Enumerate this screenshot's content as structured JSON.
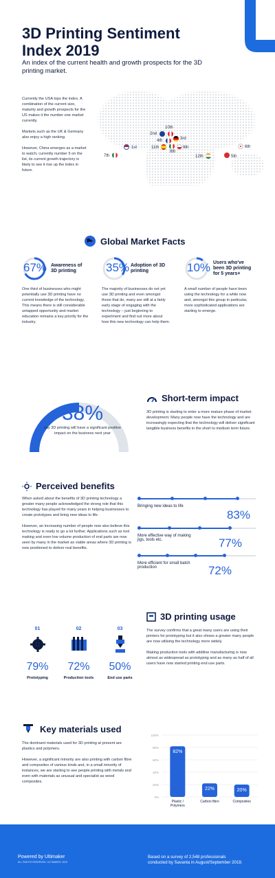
{
  "header": {
    "title_line1": "3D Printing Sentiment",
    "title_line2": "Index 2019",
    "subtitle": "An index of the current health and growth prospects for the 3D printing market."
  },
  "intro": {
    "p1": "Currently the USA tops the index. A combination of the current size, maturity and growth prospects for the US makes it the number one market currently.",
    "p2": "Markets such as the UK & Germany also enjoy a high ranking.",
    "p3": "However, China emerges as a market to watch; currently number 5 on the list, its current growth trajectory is likely to see it rise up the index in future."
  },
  "map": {
    "ranks": [
      "1st",
      "2nd",
      "3rd",
      "4th",
      "5th",
      "6th",
      "7th",
      "8th",
      "9th",
      "10th",
      "11th",
      "12th"
    ]
  },
  "global": {
    "heading": "Global Market Facts",
    "facts": [
      {
        "pct": "67%",
        "title": "Awareness of 3D printing",
        "body": "One third of businesses who might potentially use 3D printing have no current knowledge of the technology. This means there is still considerable untapped opportunity and market education remains a key priority for the industry."
      },
      {
        "pct": "35%",
        "title": "Adoption of 3D printing",
        "body": "The majority of businesses do not yet use 3D printing and even amongst those that do, many are still at a fairly early stage of engaging with the technology – just beginning to experiment and find out more about how this new technology can help them."
      },
      {
        "pct": "10%",
        "title": "Users who've been 3D printing for 5 years+",
        "body": "A small number of people have been using the technology for a while now and, amongst this group in particular, more sophisticated applications are starting to emerge."
      }
    ]
  },
  "short": {
    "pct": "38%",
    "caption": "say 3D printing will have a significant positive impact on the business next year",
    "heading": "Short-term impact",
    "body": "3D printing is starting to enter a more mature phase of market development. Many people now have the technology and are increasingly expecting that the technology will deliver significant tangible business benefits in the short to medium term future."
  },
  "benefits": {
    "heading": "Perceived benefits",
    "p1": "When asked about the benefits of 3D printing technology a greater many people acknowledged the strong role that this technology has played for many years in helping businesses to create prototypes and bring new ideas to life.",
    "p2": "However, an increasing number of people now also believe this technology is ready to go a lot further. Applications such as tool making and even low volume production of end parts are now seen by many in the market as viable areas where 3D printing is now positioned to deliver real benefits.",
    "items": [
      {
        "label": "Bringing new ideas to life",
        "pct": "83%",
        "value": 83
      },
      {
        "label": "More effective way of making jigs, tools etc.",
        "pct": "77%",
        "value": 77
      },
      {
        "label": "More efficient for small batch production",
        "pct": "72%",
        "value": 72
      }
    ]
  },
  "usage": {
    "heading": "3D printing usage",
    "p1": "The survey confirms that a great many users are using their printers for prototyping but it also shows a greater many people are now utilising the technology more widely.",
    "p2": "Making production tools with additive manufacturing is now almost as widespread as prototyping and as many as half of all users have now started printing end use parts.",
    "items": [
      {
        "num": "01",
        "pct": "79%",
        "label": "Prototyping"
      },
      {
        "num": "02",
        "pct": "72%",
        "label": "Production tools"
      },
      {
        "num": "03",
        "pct": "50%",
        "label": "End use parts"
      }
    ]
  },
  "materials": {
    "heading": "Key materials used",
    "p1": "The dominant materials used for 3D printing at present are plastics and polymers.",
    "p2": "However, a significant minority are also printing with carbon fibre and composites of various kinds and, in a small minority of instances, we are starting to see people printing with metals and even with materials as unusual and specialist as wood composites."
  },
  "chart_data": {
    "type": "bar",
    "categories": [
      "Plastic / Polymers",
      "Carbon fibre",
      "Composites"
    ],
    "values": [
      82,
      22,
      20
    ],
    "labels": [
      "82%",
      "22%",
      "20%"
    ],
    "ylim": [
      0,
      100
    ],
    "ticks": [
      "100%",
      "80%",
      "60%",
      "40%",
      "20%",
      "0%"
    ],
    "grid": true,
    "color": "#2563d9"
  },
  "footer": {
    "powered": "Powered by Ultimaker",
    "rights": "ALL RIGHTS RESERVED. ULTIMAKER, 2019",
    "survey_line1": "Based on a survey of 2,548 professionals",
    "survey_line2": "conducted by Savanta in August/September 2019."
  },
  "colors": {
    "accent": "#2563d9",
    "footer": "#1d6cdf",
    "text": "#0f1b3d"
  }
}
